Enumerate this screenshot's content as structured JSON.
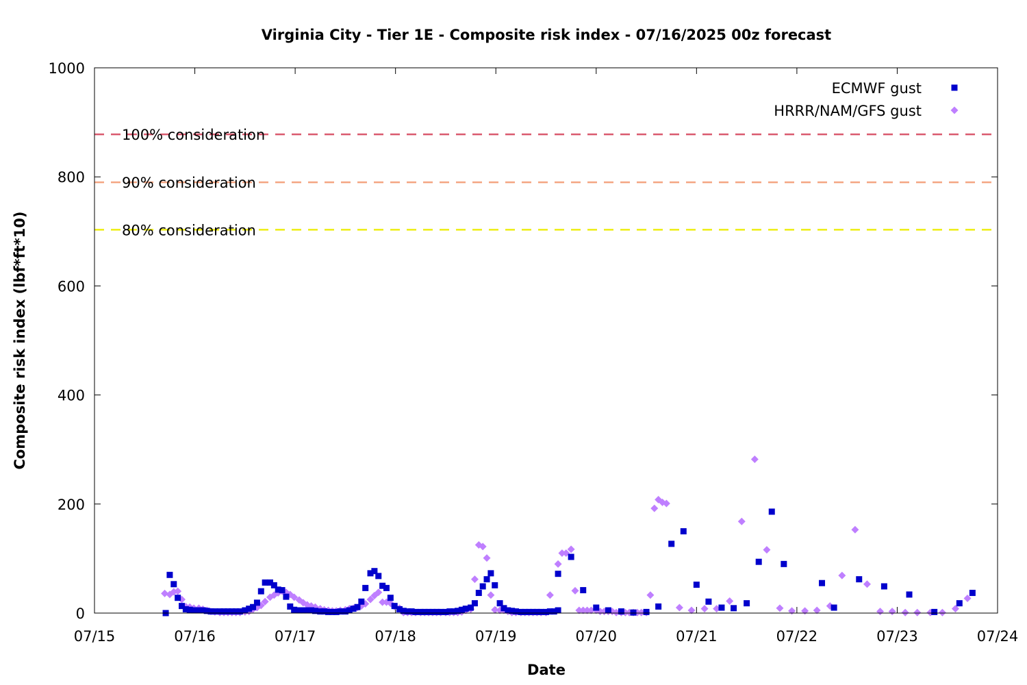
{
  "chart_data": {
    "type": "scatter",
    "title": "Virginia City - Tier 1E - Composite risk index - 07/16/2025 00z forecast",
    "xlabel": "Date",
    "ylabel": "Composite risk index (lbf*ft*10)",
    "xlim": [
      0,
      9
    ],
    "ylim": [
      0,
      1000
    ],
    "x_ticks": [
      {
        "value": 0,
        "label": "07/15"
      },
      {
        "value": 1,
        "label": "07/16"
      },
      {
        "value": 2,
        "label": "07/17"
      },
      {
        "value": 3,
        "label": "07/18"
      },
      {
        "value": 4,
        "label": "07/19"
      },
      {
        "value": 5,
        "label": "07/20"
      },
      {
        "value": 6,
        "label": "07/21"
      },
      {
        "value": 7,
        "label": "07/22"
      },
      {
        "value": 8,
        "label": "07/23"
      },
      {
        "value": 9,
        "label": "07/24"
      }
    ],
    "y_ticks": [
      {
        "value": 0,
        "label": "0"
      },
      {
        "value": 200,
        "label": "200"
      },
      {
        "value": 400,
        "label": "400"
      },
      {
        "value": 600,
        "label": "600"
      },
      {
        "value": 800,
        "label": "800"
      },
      {
        "value": 1000,
        "label": "1000"
      }
    ],
    "grid": false,
    "legend_position": "top-right",
    "reference_lines": [
      {
        "label": "100% consideration",
        "value": 878,
        "color": "#d9596e"
      },
      {
        "label": "90% consideration",
        "value": 790,
        "color": "#f4a582"
      },
      {
        "label": "80% consideration",
        "value": 703,
        "color": "#eded10"
      }
    ],
    "series": [
      {
        "name": "ECMWF gust",
        "color": "#0000cc",
        "marker": "square",
        "points": [
          [
            0.71,
            0
          ],
          [
            0.75,
            70
          ],
          [
            0.79,
            53
          ],
          [
            0.83,
            28
          ],
          [
            0.87,
            13
          ],
          [
            0.91,
            7
          ],
          [
            0.95,
            6
          ],
          [
            0.99,
            5
          ],
          [
            1.04,
            5
          ],
          [
            1.08,
            5
          ],
          [
            1.12,
            4
          ],
          [
            1.16,
            3
          ],
          [
            1.2,
            3
          ],
          [
            1.25,
            3
          ],
          [
            1.29,
            3
          ],
          [
            1.33,
            3
          ],
          [
            1.37,
            3
          ],
          [
            1.41,
            3
          ],
          [
            1.45,
            3
          ],
          [
            1.5,
            5
          ],
          [
            1.54,
            8
          ],
          [
            1.58,
            11
          ],
          [
            1.62,
            19
          ],
          [
            1.66,
            40
          ],
          [
            1.7,
            56
          ],
          [
            1.75,
            56
          ],
          [
            1.79,
            51
          ],
          [
            1.83,
            43
          ],
          [
            1.87,
            42
          ],
          [
            1.91,
            30
          ],
          [
            1.95,
            12
          ],
          [
            1.99,
            6
          ],
          [
            2.04,
            5
          ],
          [
            2.08,
            5
          ],
          [
            2.12,
            5
          ],
          [
            2.16,
            5
          ],
          [
            2.2,
            4
          ],
          [
            2.25,
            3
          ],
          [
            2.29,
            3
          ],
          [
            2.33,
            2
          ],
          [
            2.37,
            2
          ],
          [
            2.41,
            2
          ],
          [
            2.45,
            3
          ],
          [
            2.5,
            3
          ],
          [
            2.54,
            5
          ],
          [
            2.58,
            8
          ],
          [
            2.62,
            11
          ],
          [
            2.66,
            21
          ],
          [
            2.7,
            46
          ],
          [
            2.75,
            73
          ],
          [
            2.79,
            77
          ],
          [
            2.83,
            68
          ],
          [
            2.87,
            50
          ],
          [
            2.91,
            46
          ],
          [
            2.95,
            28
          ],
          [
            2.99,
            13
          ],
          [
            3.04,
            7
          ],
          [
            3.08,
            4
          ],
          [
            3.12,
            3
          ],
          [
            3.16,
            3
          ],
          [
            3.2,
            2
          ],
          [
            3.25,
            2
          ],
          [
            3.29,
            2
          ],
          [
            3.33,
            2
          ],
          [
            3.37,
            2
          ],
          [
            3.41,
            2
          ],
          [
            3.45,
            2
          ],
          [
            3.5,
            2
          ],
          [
            3.54,
            3
          ],
          [
            3.58,
            3
          ],
          [
            3.62,
            4
          ],
          [
            3.66,
            6
          ],
          [
            3.7,
            8
          ],
          [
            3.75,
            10
          ],
          [
            3.79,
            18
          ],
          [
            3.83,
            37
          ],
          [
            3.87,
            49
          ],
          [
            3.91,
            62
          ],
          [
            3.95,
            73
          ],
          [
            3.99,
            51
          ],
          [
            4.04,
            18
          ],
          [
            4.08,
            9
          ],
          [
            4.12,
            5
          ],
          [
            4.16,
            4
          ],
          [
            4.2,
            3
          ],
          [
            4.25,
            2
          ],
          [
            4.29,
            2
          ],
          [
            4.33,
            2
          ],
          [
            4.37,
            2
          ],
          [
            4.41,
            2
          ],
          [
            4.45,
            2
          ],
          [
            4.5,
            2
          ],
          [
            4.54,
            3
          ],
          [
            4.58,
            3
          ],
          [
            4.62,
            5
          ],
          [
            4.62,
            72
          ],
          [
            4.75,
            103
          ],
          [
            4.87,
            42
          ],
          [
            5.0,
            10
          ],
          [
            5.12,
            5
          ],
          [
            5.25,
            3
          ],
          [
            5.37,
            1
          ],
          [
            5.5,
            2
          ],
          [
            5.62,
            12
          ],
          [
            5.75,
            127
          ],
          [
            5.87,
            150
          ],
          [
            6.0,
            52
          ],
          [
            6.12,
            21
          ],
          [
            6.25,
            10
          ],
          [
            6.37,
            9
          ],
          [
            6.5,
            18
          ],
          [
            6.62,
            94
          ],
          [
            6.75,
            186
          ],
          [
            6.87,
            90
          ],
          [
            7.25,
            55
          ],
          [
            7.37,
            10
          ],
          [
            7.62,
            62
          ],
          [
            7.87,
            49
          ],
          [
            8.12,
            34
          ],
          [
            8.37,
            2
          ],
          [
            8.62,
            18
          ],
          [
            8.75,
            37
          ]
        ]
      },
      {
        "name": "HRRR/NAM/GFS gust",
        "color": "#bf7fff",
        "marker": "diamond",
        "points": [
          [
            0.7,
            36
          ],
          [
            0.75,
            34
          ],
          [
            0.79,
            39
          ],
          [
            0.83,
            40
          ],
          [
            0.87,
            25
          ],
          [
            0.91,
            12
          ],
          [
            0.95,
            11
          ],
          [
            0.99,
            9
          ],
          [
            1.04,
            9
          ],
          [
            1.08,
            7
          ],
          [
            1.12,
            5
          ],
          [
            1.16,
            3
          ],
          [
            1.2,
            2
          ],
          [
            1.25,
            1
          ],
          [
            1.29,
            1
          ],
          [
            1.33,
            1
          ],
          [
            1.37,
            1
          ],
          [
            1.41,
            1
          ],
          [
            1.45,
            1
          ],
          [
            1.5,
            2
          ],
          [
            1.54,
            3
          ],
          [
            1.58,
            7
          ],
          [
            1.62,
            10
          ],
          [
            1.66,
            14
          ],
          [
            1.7,
            21
          ],
          [
            1.75,
            29
          ],
          [
            1.79,
            33
          ],
          [
            1.83,
            37
          ],
          [
            1.87,
            40
          ],
          [
            1.91,
            38
          ],
          [
            1.95,
            34
          ],
          [
            1.99,
            29
          ],
          [
            2.04,
            24
          ],
          [
            2.08,
            19
          ],
          [
            2.12,
            15
          ],
          [
            2.16,
            13
          ],
          [
            2.2,
            11
          ],
          [
            2.25,
            8
          ],
          [
            2.29,
            6
          ],
          [
            2.33,
            5
          ],
          [
            2.37,
            4
          ],
          [
            2.41,
            4
          ],
          [
            2.45,
            5
          ],
          [
            2.5,
            6
          ],
          [
            2.54,
            8
          ],
          [
            2.58,
            9
          ],
          [
            2.62,
            10
          ],
          [
            2.66,
            13
          ],
          [
            2.7,
            17
          ],
          [
            2.75,
            25
          ],
          [
            2.79,
            32
          ],
          [
            2.83,
            38
          ],
          [
            2.87,
            20
          ],
          [
            2.91,
            20
          ],
          [
            2.95,
            18
          ],
          [
            2.99,
            12
          ],
          [
            3.04,
            9
          ],
          [
            3.08,
            1
          ],
          [
            3.12,
            1
          ],
          [
            3.16,
            1
          ],
          [
            3.2,
            1
          ],
          [
            3.25,
            1
          ],
          [
            3.29,
            1
          ],
          [
            3.33,
            1
          ],
          [
            3.37,
            1
          ],
          [
            3.41,
            1
          ],
          [
            3.45,
            1
          ],
          [
            3.5,
            1
          ],
          [
            3.54,
            1
          ],
          [
            3.58,
            1
          ],
          [
            3.62,
            1
          ],
          [
            3.66,
            2
          ],
          [
            3.7,
            5
          ],
          [
            3.75,
            7
          ],
          [
            3.79,
            62
          ],
          [
            3.83,
            125
          ],
          [
            3.87,
            122
          ],
          [
            3.91,
            101
          ],
          [
            3.95,
            33
          ],
          [
            3.99,
            6
          ],
          [
            4.04,
            5
          ],
          [
            4.08,
            5
          ],
          [
            4.12,
            3
          ],
          [
            4.16,
            1
          ],
          [
            4.2,
            1
          ],
          [
            4.25,
            1
          ],
          [
            4.29,
            1
          ],
          [
            4.33,
            1
          ],
          [
            4.37,
            1
          ],
          [
            4.41,
            1
          ],
          [
            4.45,
            1
          ],
          [
            4.5,
            1
          ],
          [
            4.54,
            33
          ],
          [
            4.62,
            90
          ],
          [
            4.66,
            110
          ],
          [
            4.7,
            110
          ],
          [
            4.75,
            117
          ],
          [
            4.79,
            41
          ],
          [
            4.83,
            5
          ],
          [
            4.87,
            5
          ],
          [
            4.91,
            5
          ],
          [
            4.95,
            5
          ],
          [
            5.0,
            5
          ],
          [
            5.04,
            3
          ],
          [
            5.08,
            3
          ],
          [
            5.12,
            3
          ],
          [
            5.16,
            3
          ],
          [
            5.2,
            1
          ],
          [
            5.25,
            1
          ],
          [
            5.29,
            1
          ],
          [
            5.33,
            1
          ],
          [
            5.37,
            1
          ],
          [
            5.41,
            1
          ],
          [
            5.45,
            1
          ],
          [
            5.5,
            1
          ],
          [
            5.54,
            33
          ],
          [
            5.58,
            192
          ],
          [
            5.62,
            208
          ],
          [
            5.66,
            203
          ],
          [
            5.7,
            201
          ],
          [
            5.83,
            10
          ],
          [
            5.95,
            5
          ],
          [
            6.08,
            8
          ],
          [
            6.2,
            8
          ],
          [
            6.33,
            22
          ],
          [
            6.45,
            168
          ],
          [
            6.58,
            282
          ],
          [
            6.7,
            116
          ],
          [
            6.83,
            9
          ],
          [
            6.95,
            4
          ],
          [
            7.08,
            4
          ],
          [
            7.2,
            5
          ],
          [
            7.33,
            13
          ],
          [
            7.45,
            69
          ],
          [
            7.58,
            153
          ],
          [
            7.7,
            53
          ],
          [
            7.83,
            3
          ],
          [
            7.95,
            3
          ],
          [
            8.08,
            1
          ],
          [
            8.2,
            1
          ],
          [
            8.33,
            1
          ],
          [
            8.45,
            1
          ],
          [
            8.58,
            8
          ],
          [
            8.7,
            27
          ]
        ]
      }
    ]
  }
}
